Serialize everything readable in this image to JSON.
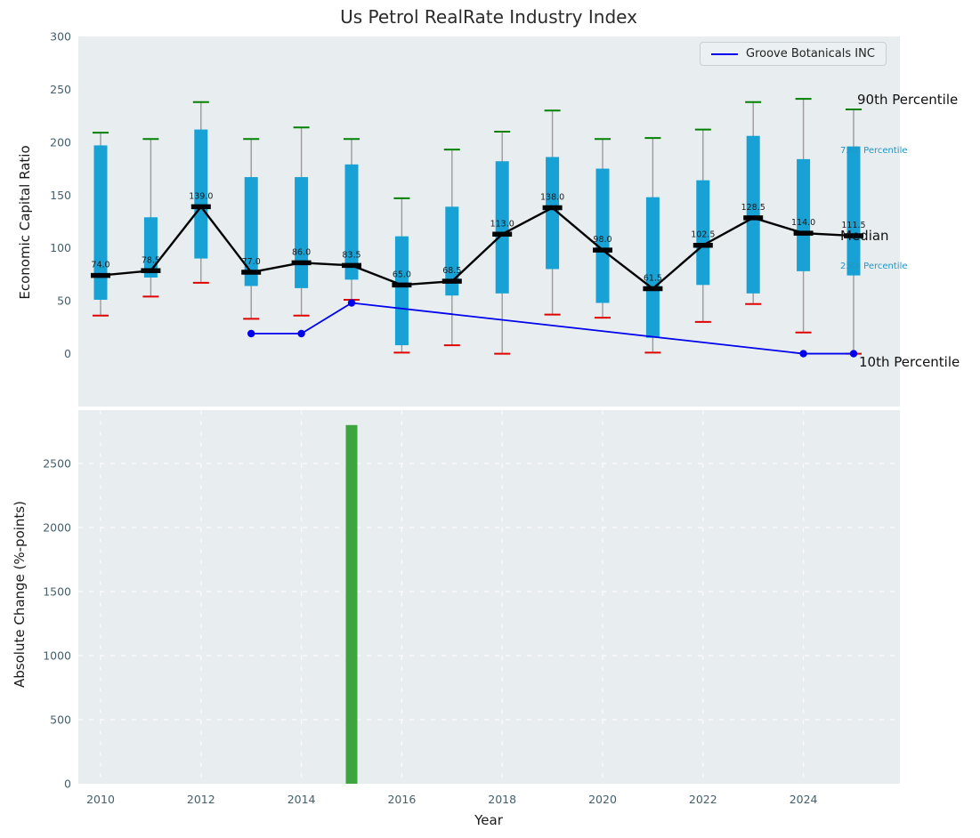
{
  "figure": {
    "title": "Us Petrol RealRate Industry Index"
  },
  "legend": {
    "label": "Groove Botanicals INC"
  },
  "annotations": {
    "p90": "90th Percentile",
    "p75": "75th Percentile",
    "median": "Median",
    "p25": "25th Percentile",
    "p10": "10th Percentile"
  },
  "colors": {
    "box_fill": "#18a1d5",
    "whisker": "#9a9a9a",
    "cap_top": "#008000",
    "cap_bottom": "#e00000",
    "median": "#000000",
    "company_line": "#0000ee",
    "bar": "#3ea43e",
    "axes_bg": "#e8eef0",
    "tick": "#44606e",
    "grid": "#ffffff",
    "median_label": "#1a1a1a"
  },
  "chart_data": [
    {
      "type": "boxplot+line",
      "title": "Us Petrol RealRate Industry Index",
      "ylabel": "Economic Capital Ratio",
      "ylim": [
        -50,
        300
      ],
      "yticks": [
        0,
        50,
        100,
        150,
        200,
        250,
        300
      ],
      "grid": false,
      "legend_position": "upper right",
      "years": [
        2010,
        2011,
        2012,
        2013,
        2014,
        2015,
        2016,
        2017,
        2018,
        2019,
        2020,
        2021,
        2022,
        2023,
        2024,
        2025
      ],
      "p90": [
        209,
        203,
        238,
        203,
        214,
        203,
        147,
        193,
        210,
        230,
        203,
        204,
        212,
        238,
        241,
        231
      ],
      "p75": [
        197,
        129,
        212,
        167,
        167,
        179,
        111,
        139,
        182,
        186,
        175,
        148,
        164,
        206,
        184,
        196
      ],
      "median": [
        74.0,
        78.5,
        139.0,
        77.0,
        86.0,
        83.5,
        65.0,
        68.5,
        113.0,
        138.0,
        98.0,
        61.5,
        102.5,
        128.5,
        114.0,
        111.5
      ],
      "p25": [
        51,
        72,
        90,
        64,
        62,
        70,
        8,
        55,
        57,
        80,
        48,
        15,
        65,
        57,
        78,
        74
      ],
      "p10": [
        36,
        54,
        67,
        33,
        36,
        51,
        1,
        8,
        0,
        37,
        34,
        1,
        30,
        47,
        20,
        0
      ],
      "median_labels": [
        "74.0",
        "78.5",
        "139.0",
        "77.0",
        "86.0",
        "83.5",
        "65.0",
        "68.5",
        "113.0",
        "138.0",
        "98.0",
        "61.5",
        "102.5",
        "128.5",
        "114.0",
        "111.5"
      ],
      "series": [
        {
          "name": "Groove Botanicals INC",
          "x": [
            2013,
            2014,
            2015,
            2024,
            2025
          ],
          "y": [
            19,
            19,
            48,
            0,
            0
          ]
        }
      ]
    },
    {
      "type": "bar",
      "xlabel": "Year",
      "ylabel": "Absolute Change (%-points)",
      "ylim": [
        0,
        2900
      ],
      "yticks": [
        0,
        500,
        1000,
        1500,
        2000,
        2500
      ],
      "xticks": [
        2010,
        2012,
        2014,
        2016,
        2018,
        2020,
        2022,
        2024
      ],
      "grid": true,
      "x": [
        2015
      ],
      "values": [
        2800
      ]
    }
  ]
}
